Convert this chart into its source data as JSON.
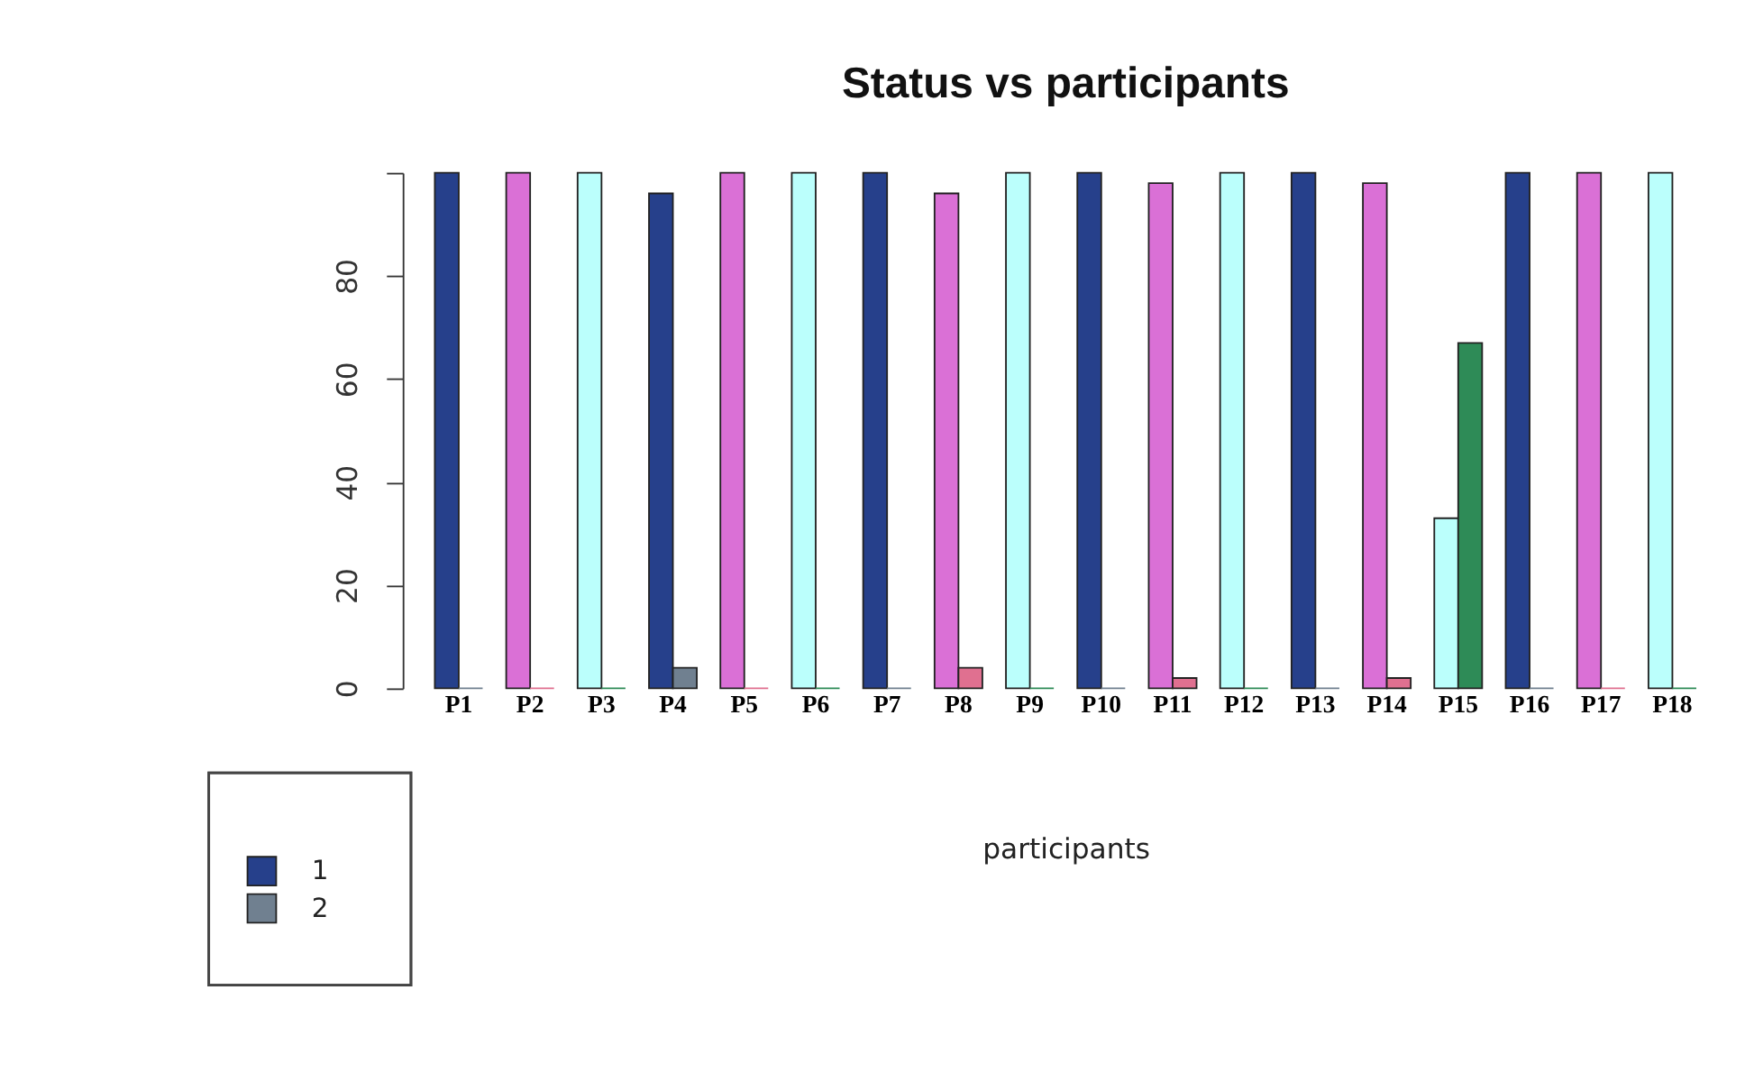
{
  "chart_data": {
    "type": "bar",
    "title": "Status vs participants",
    "xlabel": "participants",
    "categories": [
      "P1",
      "P2",
      "P3",
      "P4",
      "P5",
      "P6",
      "P7",
      "P8",
      "P9",
      "P10",
      "P11",
      "P12",
      "P13",
      "P14",
      "P15",
      "P16",
      "P17",
      "P18"
    ],
    "series": [
      {
        "name": "1",
        "color": "#26408b",
        "colors": [
          "#26408b",
          "#da70d6",
          "#bbfffc",
          "#26408b",
          "#da70d6",
          "#bbfffc",
          "#26408b",
          "#da70d6",
          "#bbfffc",
          "#26408b",
          "#da70d6",
          "#bbfffc",
          "#26408b",
          "#da70d6",
          "#bbfffc",
          "#26408b",
          "#da70d6",
          "#bbfffc"
        ],
        "values": [
          100,
          100,
          100,
          96,
          100,
          100,
          100,
          96,
          100,
          100,
          98,
          100,
          100,
          98,
          33,
          100,
          100,
          100
        ]
      },
      {
        "name": "2",
        "color": "#708090",
        "colors": [
          "#708090",
          "#e07090",
          "#2e8b57",
          "#708090",
          "#e07090",
          "#2e8b57",
          "#708090",
          "#e07090",
          "#2e8b57",
          "#708090",
          "#e07090",
          "#2e8b57",
          "#708090",
          "#e07090",
          "#2e8b57",
          "#708090",
          "#e07090",
          "#2e8b57"
        ],
        "values": [
          0,
          0,
          0,
          4,
          0,
          0,
          0,
          4,
          0,
          0,
          2,
          0,
          0,
          2,
          67,
          0,
          0,
          0
        ]
      }
    ],
    "ylim": [
      0,
      100
    ],
    "yticks": [
      0,
      20,
      40,
      60,
      80,
      {
        "value": 100,
        "label": null
      }
    ],
    "grid": false,
    "legend": "bottom left"
  }
}
